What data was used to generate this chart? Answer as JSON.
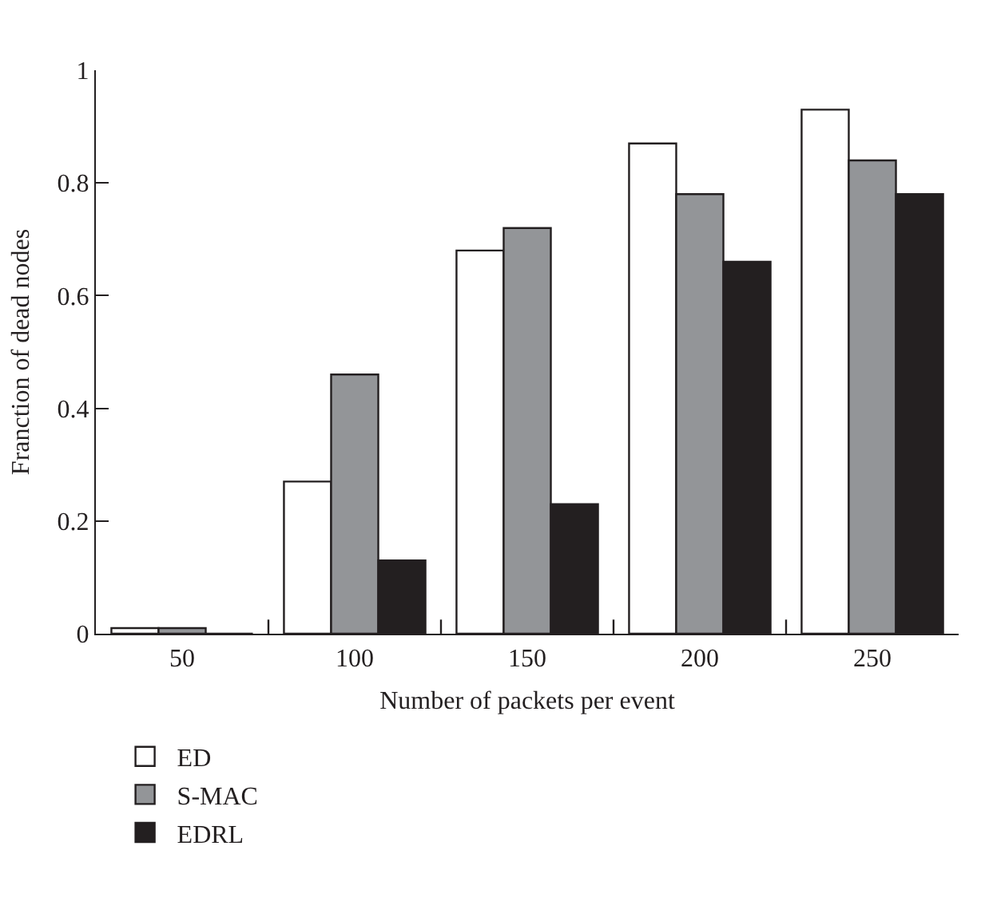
{
  "chart_data": {
    "type": "bar",
    "xlabel": "Number of packets per event",
    "ylabel": "Franction of dead nodes",
    "categories": [
      "50",
      "100",
      "150",
      "200",
      "250"
    ],
    "series": [
      {
        "name": "ED",
        "color": "#ffffff",
        "values": [
          0.01,
          0.27,
          0.68,
          0.87,
          0.93
        ]
      },
      {
        "name": "S-MAC",
        "color": "#939598",
        "values": [
          0.01,
          0.46,
          0.72,
          0.78,
          0.84
        ]
      },
      {
        "name": "EDRL",
        "color": "#231f20",
        "values": [
          0,
          0.13,
          0.23,
          0.66,
          0.78
        ]
      }
    ],
    "ylim": [
      0,
      1
    ],
    "yticks": [
      0,
      0.2,
      0.4,
      0.6,
      0.8,
      1
    ],
    "grid": false,
    "legend": "bottom left"
  }
}
